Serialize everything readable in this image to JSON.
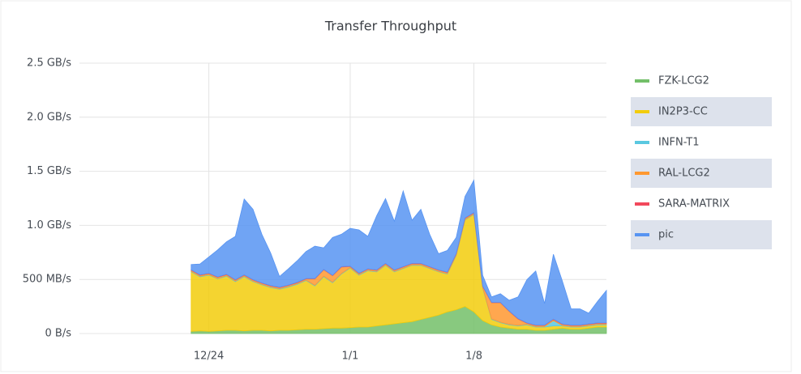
{
  "chart_data": {
    "type": "area",
    "title": "Transfer Throughput",
    "stacked": true,
    "grid": true,
    "categories": [
      null,
      null,
      null,
      null,
      null,
      null,
      null,
      null,
      null,
      null,
      null,
      null,
      null,
      null,
      "12/24",
      null,
      null,
      null,
      null,
      null,
      null,
      null,
      null,
      null,
      null,
      null,
      null,
      null,
      null,
      null,
      "1/1",
      null,
      null,
      null,
      null,
      null,
      null,
      null,
      null,
      null,
      null,
      null,
      null,
      null,
      "1/8",
      null,
      null,
      null,
      null,
      null,
      null,
      null,
      null,
      null,
      null,
      null,
      null,
      null,
      null,
      null
    ],
    "ylim": [
      0,
      2500
    ],
    "yticks": [
      {
        "value": 0,
        "label": "0 B/s"
      },
      {
        "value": 500,
        "label": "500 MB/s"
      },
      {
        "value": 1000,
        "label": "1.0 GB/s"
      },
      {
        "value": 1500,
        "label": "1.5 GB/s"
      },
      {
        "value": 2000,
        "label": "2.0 GB/s"
      },
      {
        "value": 2500,
        "label": "2.5 GB/s"
      }
    ],
    "series": [
      {
        "name": "FZK-LCG2",
        "color": "#73bf69",
        "values": [
          null,
          null,
          null,
          null,
          null,
          null,
          null,
          null,
          null,
          null,
          null,
          null,
          20,
          25,
          20,
          25,
          30,
          30,
          25,
          30,
          30,
          25,
          30,
          30,
          35,
          40,
          40,
          45,
          50,
          50,
          55,
          60,
          60,
          70,
          80,
          90,
          100,
          110,
          130,
          150,
          170,
          200,
          220,
          250,
          200,
          120,
          80,
          60,
          50,
          40,
          40,
          30,
          30,
          40,
          50,
          40,
          40,
          50,
          60,
          60
        ]
      },
      {
        "name": "IN2P3-CC",
        "color": "#f2cc0c",
        "values": [
          null,
          null,
          null,
          null,
          null,
          null,
          null,
          null,
          null,
          null,
          null,
          null,
          550,
          500,
          520,
          480,
          500,
          450,
          500,
          450,
          420,
          400,
          380,
          400,
          420,
          450,
          400,
          480,
          420,
          500,
          550,
          480,
          520,
          500,
          550,
          480,
          500,
          520,
          500,
          450,
          400,
          350,
          500,
          800,
          900,
          300,
          50,
          40,
          30,
          30,
          40,
          30,
          30,
          30,
          20,
          20,
          20,
          20,
          20,
          20
        ]
      },
      {
        "name": "INFN-T1",
        "color": "#5ac8e0",
        "values": [
          null,
          null,
          null,
          null,
          null,
          null,
          null,
          null,
          null,
          null,
          null,
          null,
          5,
          5,
          5,
          5,
          5,
          5,
          5,
          5,
          5,
          5,
          5,
          5,
          5,
          5,
          5,
          5,
          5,
          5,
          5,
          5,
          5,
          5,
          5,
          5,
          5,
          5,
          5,
          5,
          5,
          5,
          5,
          5,
          5,
          5,
          5,
          5,
          5,
          5,
          5,
          5,
          5,
          50,
          5,
          5,
          5,
          5,
          5,
          5
        ]
      },
      {
        "name": "RAL-LCG2",
        "color": "#ff9830",
        "values": [
          null,
          null,
          null,
          null,
          null,
          null,
          null,
          null,
          null,
          null,
          null,
          null,
          10,
          10,
          10,
          10,
          10,
          10,
          10,
          10,
          10,
          10,
          10,
          10,
          10,
          10,
          60,
          60,
          60,
          60,
          10,
          10,
          10,
          10,
          10,
          10,
          10,
          10,
          10,
          10,
          10,
          10,
          10,
          10,
          10,
          10,
          150,
          180,
          120,
          60,
          10,
          10,
          10,
          10,
          10,
          10,
          10,
          10,
          10,
          10
        ]
      },
      {
        "name": "SARA-MATRIX",
        "color": "#f2495c",
        "values": [
          null,
          null,
          null,
          null,
          null,
          null,
          null,
          null,
          null,
          null,
          null,
          null,
          3,
          3,
          3,
          3,
          3,
          3,
          3,
          3,
          3,
          3,
          3,
          3,
          3,
          3,
          3,
          3,
          3,
          3,
          3,
          3,
          3,
          3,
          3,
          3,
          3,
          3,
          3,
          3,
          3,
          3,
          3,
          3,
          3,
          3,
          3,
          3,
          3,
          3,
          3,
          3,
          3,
          3,
          3,
          3,
          3,
          3,
          3,
          3
        ]
      },
      {
        "name": "pic",
        "color": "#5794f2",
        "values": [
          null,
          null,
          null,
          null,
          null,
          null,
          null,
          null,
          null,
          null,
          null,
          null,
          50,
          100,
          150,
          250,
          300,
          400,
          700,
          650,
          450,
          300,
          100,
          150,
          200,
          250,
          300,
          200,
          350,
          300,
          350,
          400,
          300,
          500,
          600,
          450,
          700,
          400,
          500,
          300,
          150,
          200,
          150,
          200,
          300,
          100,
          50,
          80,
          100,
          200,
          400,
          500,
          200,
          600,
          400,
          150,
          150,
          100,
          200,
          300
        ]
      }
    ]
  }
}
